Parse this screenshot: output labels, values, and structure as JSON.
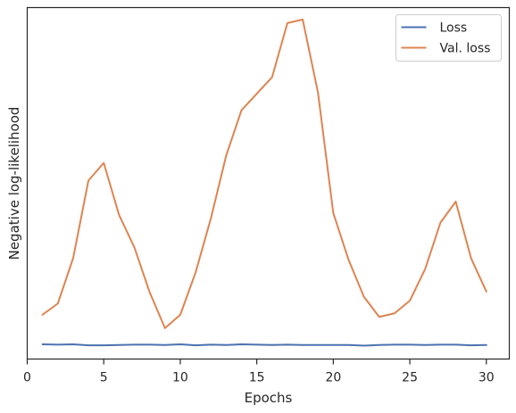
{
  "chart_data": {
    "type": "line",
    "xlabel": "Epochs",
    "ylabel": "Negative log-likelihood",
    "x": [
      1,
      2,
      3,
      4,
      5,
      6,
      7,
      8,
      9,
      10,
      11,
      12,
      13,
      14,
      15,
      16,
      17,
      18,
      19,
      20,
      21,
      22,
      23,
      24,
      25,
      26,
      27,
      28,
      29,
      30
    ],
    "xlim": [
      0.0,
      31.5
    ],
    "ylim": [
      0,
      100
    ],
    "x_ticks": [
      0,
      5,
      10,
      15,
      20,
      25,
      30
    ],
    "y_ticks_shown": false,
    "grid": false,
    "legend_position": "top-right",
    "series": [
      {
        "name": "Loss",
        "color": "#4c72b0",
        "values": [
          4.2,
          4.1,
          4.2,
          3.9,
          3.9,
          4.0,
          4.1,
          4.1,
          4.0,
          4.2,
          3.9,
          4.1,
          4.0,
          4.2,
          4.1,
          4.0,
          4.1,
          4.0,
          4.0,
          4.0,
          4.0,
          3.8,
          4.0,
          4.1,
          4.1,
          4.0,
          4.1,
          4.1,
          3.9,
          4.0
        ]
      },
      {
        "name": "Val. loss",
        "color": "#dd8452",
        "values": [
          12.6,
          15.8,
          28.7,
          50.8,
          55.8,
          41.0,
          31.8,
          19.0,
          8.8,
          12.6,
          24.6,
          40.0,
          57.9,
          70.8,
          75.5,
          80.2,
          95.6,
          96.6,
          75.8,
          41.5,
          28.2,
          17.7,
          12.0,
          13.0,
          16.6,
          25.6,
          38.8,
          44.8,
          28.7,
          19.2
        ]
      }
    ]
  }
}
